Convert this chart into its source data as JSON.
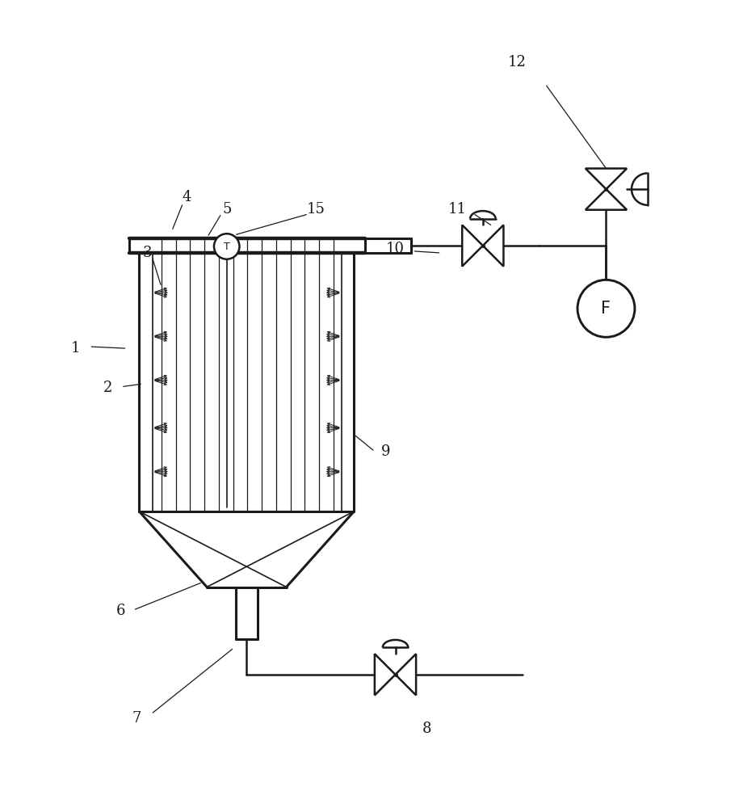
{
  "bg_color": "#ffffff",
  "line_color": "#1a1a1a",
  "lw_heavy": 2.2,
  "lw_medium": 1.8,
  "lw_light": 1.2,
  "lw_thin": 0.9
}
